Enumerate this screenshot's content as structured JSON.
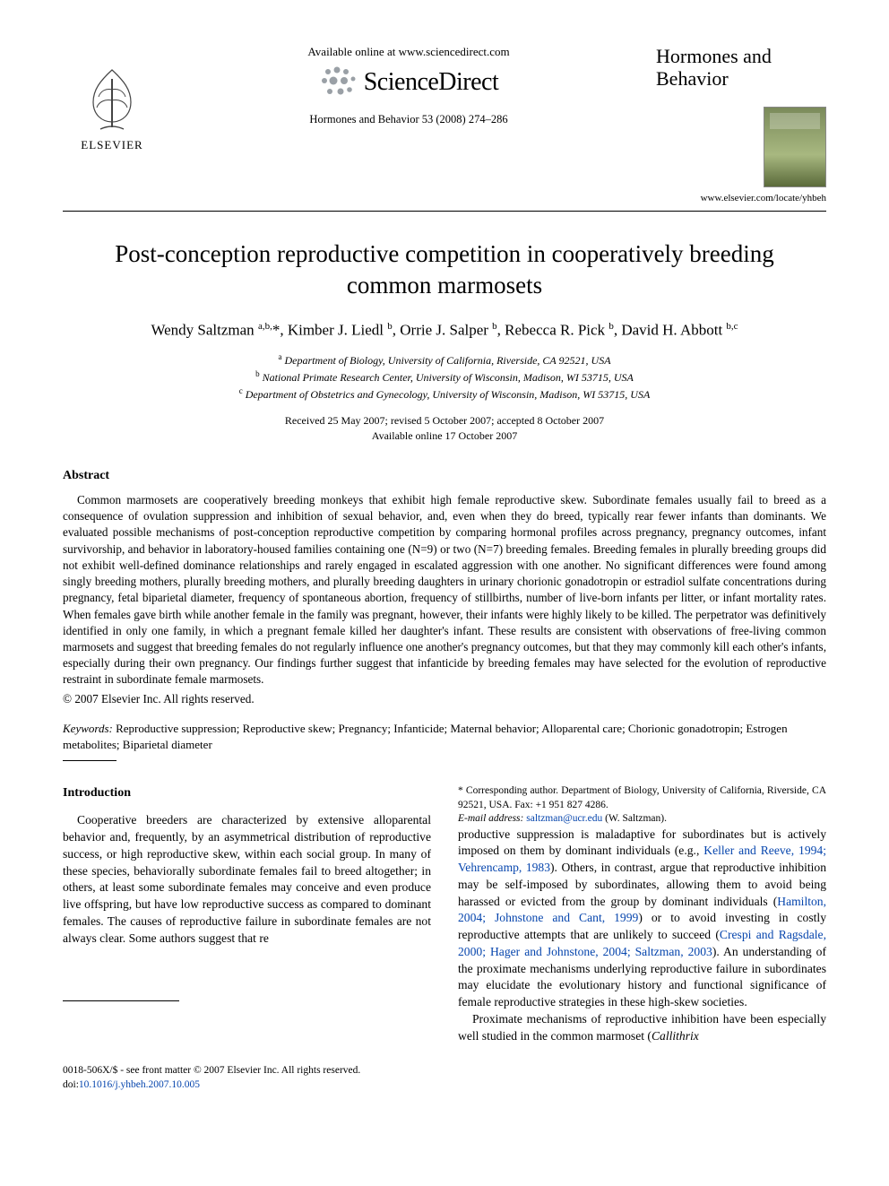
{
  "header": {
    "publisher_label": "ELSEVIER",
    "available_online": "Available online at www.sciencedirect.com",
    "sd_brand": "ScienceDirect",
    "citation": "Hormones and Behavior 53 (2008) 274–286",
    "journal_name": "Hormones and Behavior",
    "journal_url": "www.elsevier.com/locate/yhbeh",
    "sd_swirl_color": "#9aa0a6",
    "elsevier_orange": "#e9711c"
  },
  "title": "Post-conception reproductive competition in cooperatively breeding common marmosets",
  "authors_html": "Wendy Saltzman <sup>a,b,</sup>*, Kimber J. Liedl <sup>b</sup>, Orrie J. Salper <sup>b</sup>, Rebecca R. Pick <sup>b</sup>, David H. Abbott <sup>b,c</sup>",
  "affiliations": {
    "a": "Department of Biology, University of California, Riverside, CA 92521, USA",
    "b": "National Primate Research Center, University of Wisconsin, Madison, WI 53715, USA",
    "c": "Department of Obstetrics and Gynecology, University of Wisconsin, Madison, WI 53715, USA"
  },
  "dates": {
    "received_line": "Received 25 May 2007; revised 5 October 2007; accepted 8 October 2007",
    "online_line": "Available online 17 October 2007"
  },
  "abstract": {
    "heading": "Abstract",
    "body": "Common marmosets are cooperatively breeding monkeys that exhibit high female reproductive skew. Subordinate females usually fail to breed as a consequence of ovulation suppression and inhibition of sexual behavior, and, even when they do breed, typically rear fewer infants than dominants. We evaluated possible mechanisms of post-conception reproductive competition by comparing hormonal profiles across pregnancy, pregnancy outcomes, infant survivorship, and behavior in laboratory-housed families containing one (N=9) or two (N=7) breeding females. Breeding females in plurally breeding groups did not exhibit well-defined dominance relationships and rarely engaged in escalated aggression with one another. No significant differences were found among singly breeding mothers, plurally breeding mothers, and plurally breeding daughters in urinary chorionic gonadotropin or estradiol sulfate concentrations during pregnancy, fetal biparietal diameter, frequency of spontaneous abortion, frequency of stillbirths, number of live-born infants per litter, or infant mortality rates. When females gave birth while another female in the family was pregnant, however, their infants were highly likely to be killed. The perpetrator was definitively identified in only one family, in which a pregnant female killed her daughter's infant. These results are consistent with observations of free-living common marmosets and suggest that breeding females do not regularly influence one another's pregnancy outcomes, but that they may commonly kill each other's infants, especially during their own pregnancy. Our findings further suggest that infanticide by breeding females may have selected for the evolution of reproductive restraint in subordinate female marmosets.",
    "copyright": "© 2007 Elsevier Inc. All rights reserved."
  },
  "keywords": {
    "label": "Keywords:",
    "list": "Reproductive suppression; Reproductive skew; Pregnancy; Infanticide; Maternal behavior; Alloparental care; Chorionic gonadotropin; Estrogen metabolites; Biparietal diameter"
  },
  "introduction": {
    "heading": "Introduction",
    "para1_pre": "Cooperative breeders are characterized by extensive alloparental behavior and, frequently, by an asymmetrical distribution of reproductive success, or high reproductive skew, within each social group. In many of these species, behaviorally subordinate females fail to breed altogether; in others, at least some subordinate females may conceive and even produce live offspring, but have low reproductive success as compared to dominant females. The causes of reproductive failure in subordinate females are not always clear. Some authors suggest that re",
    "para1_post": "productive suppression is maladaptive for subordinates but is actively imposed on them by dominant individuals (e.g., ",
    "ref1": "Keller and Reeve, 1994; Vehrencamp, 1983",
    "para1_mid2": "). Others, in contrast, argue that reproductive inhibition may be self-imposed by subordinates, allowing them to avoid being harassed or evicted from the group by dominant individuals (",
    "ref2": "Hamilton, 2004; Johnstone and Cant, 1999",
    "para1_mid3": ") or to avoid investing in costly reproductive attempts that are unlikely to succeed (",
    "ref3": "Crespi and Ragsdale, 2000; Hager and Johnstone, 2004; Saltzman, 2003",
    "para1_end": "). An understanding of the proximate mechanisms underlying reproductive failure in subordinates may elucidate the evolutionary history and functional significance of female reproductive strategies in these high-skew societies.",
    "para2_pre": "Proximate mechanisms of reproductive inhibition have been especially well studied in the common marmoset (",
    "para2_ital": "Callithrix"
  },
  "footnote": {
    "corresp": "* Corresponding author. Department of Biology, University of California, Riverside, CA 92521, USA. Fax: +1 951 827 4286.",
    "email_label": "E-mail address:",
    "email": "saltzman@ucr.edu",
    "email_tail": " (W. Saltzman)."
  },
  "footer": {
    "line1": "0018-506X/$ - see front matter © 2007 Elsevier Inc. All rights reserved.",
    "doi_label": "doi:",
    "doi": "10.1016/j.yhbeh.2007.10.005"
  },
  "colors": {
    "text": "#000000",
    "link": "#0645ad",
    "background": "#ffffff"
  }
}
